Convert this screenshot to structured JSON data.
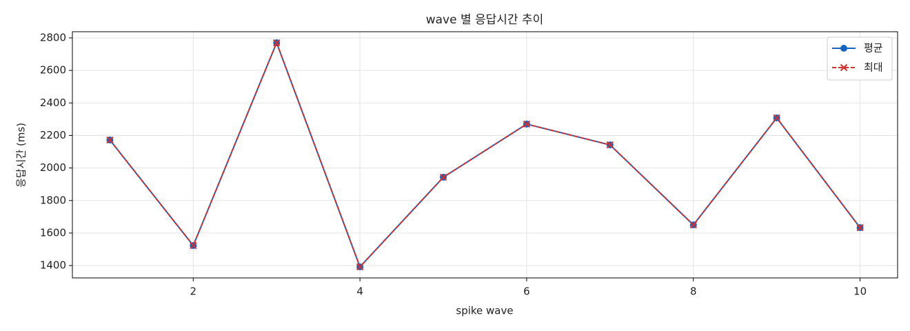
{
  "chart_data": {
    "type": "line",
    "title": "wave 별 응답시간 추이",
    "x_label": "spike wave",
    "y_label": "응답시간 (ms)",
    "x": [
      1,
      2,
      3,
      4,
      5,
      6,
      7,
      8,
      9,
      10
    ],
    "series": [
      {
        "name": "평균",
        "color": "#1565c0",
        "marker": "circle",
        "dash": "solid",
        "values": [
          2172,
          1523,
          2770,
          1392,
          1943,
          2270,
          2142,
          1650,
          2308,
          1633
        ]
      },
      {
        "name": "최대",
        "color": "#d32f2f",
        "marker": "x",
        "dash": "dashed",
        "values": [
          2172,
          1523,
          2770,
          1392,
          1943,
          2270,
          2142,
          1650,
          2308,
          1633
        ]
      }
    ],
    "xlim": [
      0.55,
      10.45
    ],
    "xticks": [
      2,
      4,
      6,
      8,
      10
    ],
    "ylim": [
      1324,
      2838
    ],
    "yticks": [
      1400,
      1600,
      1800,
      2000,
      2200,
      2400,
      2600,
      2800
    ],
    "grid": true,
    "legend": "upper right"
  }
}
